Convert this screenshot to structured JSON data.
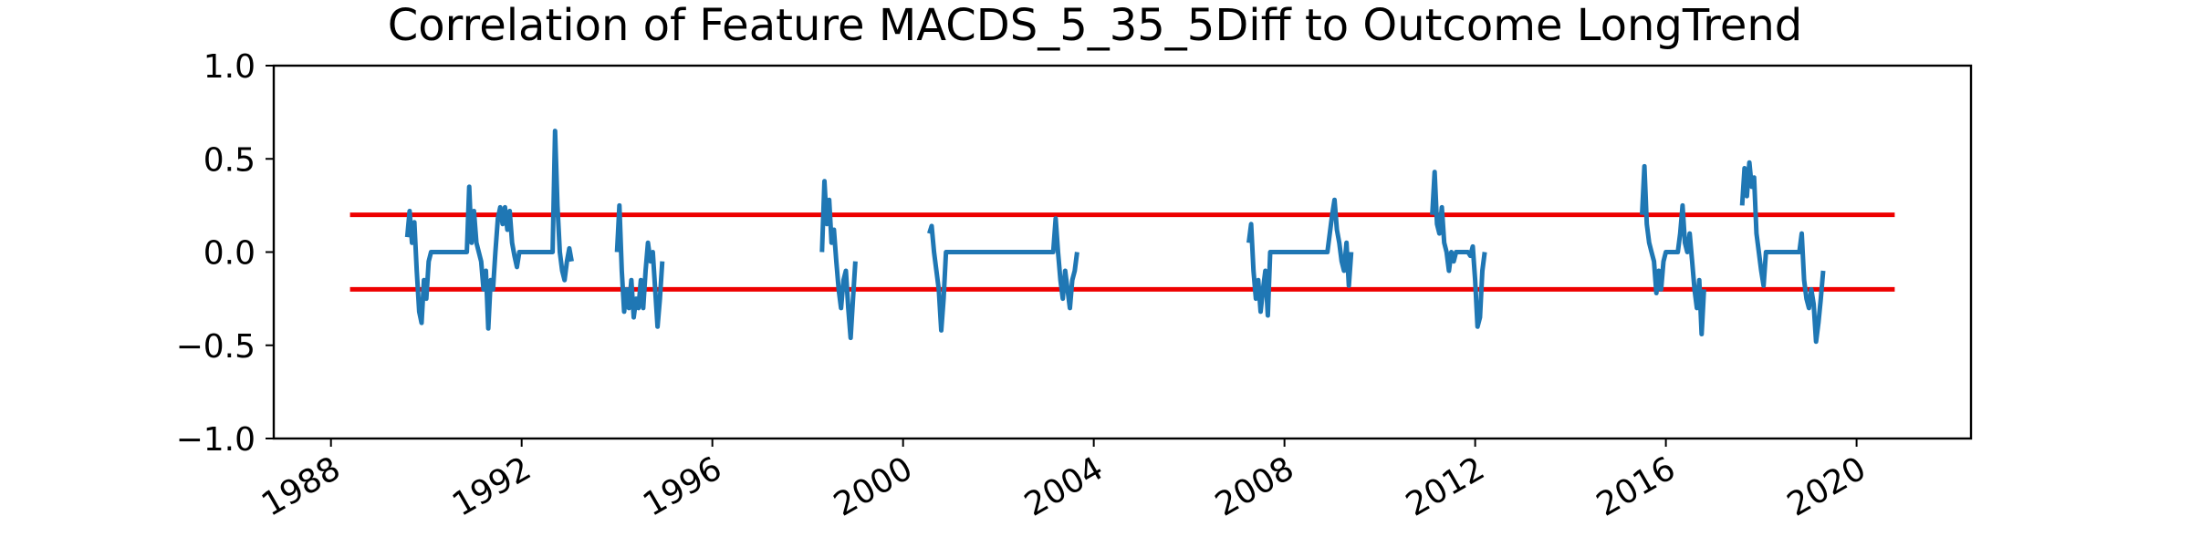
{
  "chart_data": {
    "type": "line",
    "title": "Correlation of Feature MACDS_5_35_5Diff to Outcome LongTrend",
    "xlabel": "",
    "ylabel": "",
    "xlim": [
      1986.8,
      2022.4
    ],
    "ylim": [
      -1.0,
      1.0
    ],
    "x_ticks": [
      "1988",
      "1992",
      "1996",
      "2000",
      "2004",
      "2008",
      "2012",
      "2016",
      "2020"
    ],
    "y_ticks": [
      "1.0",
      "0.5",
      "0.0",
      "−0.5",
      "−1.0"
    ],
    "grid": false,
    "legend": "none",
    "colors": {
      "series": "#1f77b4",
      "threshold": "#ee0000",
      "axes": "#000000"
    },
    "thresholds": [
      {
        "value": 0.2,
        "x_start": 1988.4,
        "x_end": 2020.8
      },
      {
        "value": -0.2,
        "x_start": 1988.4,
        "x_end": 2020.8
      }
    ],
    "series": [
      {
        "segments": [
          [
            [
              1989.6,
              0.08
            ],
            [
              1989.65,
              0.22
            ],
            [
              1989.7,
              0.05
            ],
            [
              1989.75,
              0.16
            ],
            [
              1989.8,
              -0.1
            ],
            [
              1989.85,
              -0.32
            ],
            [
              1989.9,
              -0.38
            ],
            [
              1989.95,
              -0.15
            ],
            [
              1990.0,
              -0.25
            ],
            [
              1990.05,
              -0.05
            ],
            [
              1990.1,
              0.0
            ],
            [
              1990.85,
              0.0
            ],
            [
              1990.9,
              0.35
            ],
            [
              1990.95,
              0.05
            ],
            [
              1991.0,
              0.22
            ],
            [
              1991.05,
              0.05
            ],
            [
              1991.1,
              0.0
            ],
            [
              1991.15,
              -0.05
            ],
            [
              1991.2,
              -0.2
            ],
            [
              1991.25,
              -0.1
            ],
            [
              1991.3,
              -0.41
            ],
            [
              1991.35,
              -0.15
            ],
            [
              1991.4,
              -0.2
            ],
            [
              1991.45,
              0.0
            ],
            [
              1991.5,
              0.18
            ],
            [
              1991.55,
              0.24
            ],
            [
              1991.6,
              0.15
            ],
            [
              1991.65,
              0.24
            ],
            [
              1991.7,
              0.12
            ],
            [
              1991.75,
              0.22
            ],
            [
              1991.8,
              0.05
            ],
            [
              1991.85,
              -0.02
            ],
            [
              1991.9,
              -0.08
            ],
            [
              1991.95,
              0.0
            ],
            [
              1992.65,
              0.0
            ],
            [
              1992.7,
              0.65
            ],
            [
              1992.75,
              0.25
            ],
            [
              1992.8,
              0.0
            ],
            [
              1992.85,
              -0.1
            ],
            [
              1992.9,
              -0.15
            ],
            [
              1992.95,
              -0.05
            ],
            [
              1993.0,
              0.02
            ],
            [
              1993.05,
              -0.05
            ]
          ],
          [
            [
              1994.0,
              0.0
            ],
            [
              1994.05,
              0.25
            ],
            [
              1994.1,
              -0.1
            ],
            [
              1994.15,
              -0.32
            ],
            [
              1994.2,
              -0.2
            ],
            [
              1994.25,
              -0.3
            ],
            [
              1994.3,
              -0.15
            ],
            [
              1994.35,
              -0.35
            ],
            [
              1994.4,
              -0.25
            ],
            [
              1994.45,
              -0.3
            ],
            [
              1994.5,
              -0.15
            ],
            [
              1994.55,
              -0.3
            ],
            [
              1994.6,
              -0.1
            ],
            [
              1994.65,
              0.05
            ],
            [
              1994.7,
              -0.05
            ],
            [
              1994.75,
              0.0
            ],
            [
              1994.8,
              -0.2
            ],
            [
              1994.85,
              -0.4
            ],
            [
              1994.9,
              -0.25
            ],
            [
              1994.95,
              -0.05
            ]
          ],
          [
            [
              1998.3,
              0.0
            ],
            [
              1998.35,
              0.38
            ],
            [
              1998.4,
              0.15
            ],
            [
              1998.45,
              0.28
            ],
            [
              1998.5,
              0.05
            ],
            [
              1998.55,
              0.12
            ],
            [
              1998.6,
              -0.05
            ],
            [
              1998.65,
              -0.2
            ],
            [
              1998.7,
              -0.3
            ],
            [
              1998.75,
              -0.15
            ],
            [
              1998.8,
              -0.1
            ],
            [
              1998.85,
              -0.3
            ],
            [
              1998.9,
              -0.46
            ],
            [
              1998.95,
              -0.25
            ],
            [
              1999.0,
              -0.05
            ]
          ],
          [
            [
              2000.55,
              0.1
            ],
            [
              2000.6,
              0.14
            ],
            [
              2000.65,
              0.0
            ],
            [
              2000.7,
              -0.1
            ],
            [
              2000.75,
              -0.2
            ],
            [
              2000.8,
              -0.42
            ],
            [
              2000.85,
              -0.25
            ],
            [
              2000.9,
              0.0
            ],
            [
              2003.15,
              0.0
            ],
            [
              2003.2,
              0.18
            ],
            [
              2003.25,
              0.0
            ],
            [
              2003.3,
              -0.15
            ],
            [
              2003.35,
              -0.25
            ],
            [
              2003.4,
              -0.1
            ],
            [
              2003.45,
              -0.2
            ],
            [
              2003.5,
              -0.3
            ],
            [
              2003.55,
              -0.15
            ],
            [
              2003.6,
              -0.1
            ],
            [
              2003.65,
              0.0
            ]
          ],
          [
            [
              2007.25,
              0.05
            ],
            [
              2007.3,
              0.15
            ],
            [
              2007.35,
              -0.1
            ],
            [
              2007.4,
              -0.25
            ],
            [
              2007.45,
              -0.15
            ],
            [
              2007.5,
              -0.32
            ],
            [
              2007.55,
              -0.2
            ],
            [
              2007.6,
              -0.1
            ],
            [
              2007.65,
              -0.34
            ],
            [
              2007.7,
              0.0
            ],
            [
              2008.9,
              0.0
            ],
            [
              2008.95,
              0.1
            ],
            [
              2009.0,
              0.2
            ],
            [
              2009.05,
              0.28
            ],
            [
              2009.1,
              0.12
            ],
            [
              2009.15,
              0.05
            ],
            [
              2009.2,
              -0.05
            ],
            [
              2009.25,
              -0.1
            ],
            [
              2009.3,
              0.05
            ],
            [
              2009.35,
              -0.18
            ],
            [
              2009.4,
              0.0
            ]
          ],
          [
            [
              2011.1,
              0.2
            ],
            [
              2011.15,
              0.43
            ],
            [
              2011.2,
              0.15
            ],
            [
              2011.25,
              0.1
            ],
            [
              2011.3,
              0.24
            ],
            [
              2011.35,
              0.05
            ],
            [
              2011.4,
              0.0
            ],
            [
              2011.45,
              -0.1
            ],
            [
              2011.5,
              0.0
            ],
            [
              2011.55,
              -0.05
            ],
            [
              2011.6,
              0.0
            ],
            [
              2011.85,
              0.0
            ],
            [
              2011.9,
              -0.02
            ],
            [
              2011.95,
              0.03
            ],
            [
              2012.0,
              -0.15
            ],
            [
              2012.05,
              -0.4
            ],
            [
              2012.1,
              -0.35
            ],
            [
              2012.15,
              -0.1
            ],
            [
              2012.2,
              0.0
            ]
          ],
          [
            [
              2015.5,
              0.2
            ],
            [
              2015.55,
              0.46
            ],
            [
              2015.6,
              0.15
            ],
            [
              2015.65,
              0.05
            ],
            [
              2015.7,
              0.0
            ],
            [
              2015.75,
              -0.05
            ],
            [
              2015.8,
              -0.22
            ],
            [
              2015.85,
              -0.1
            ],
            [
              2015.9,
              -0.2
            ],
            [
              2015.95,
              -0.05
            ],
            [
              2016.0,
              0.0
            ],
            [
              2016.25,
              0.0
            ],
            [
              2016.3,
              0.1
            ],
            [
              2016.35,
              0.25
            ],
            [
              2016.4,
              0.05
            ],
            [
              2016.45,
              0.0
            ],
            [
              2016.5,
              0.1
            ],
            [
              2016.55,
              -0.05
            ],
            [
              2016.6,
              -0.2
            ],
            [
              2016.65,
              -0.3
            ],
            [
              2016.7,
              -0.15
            ],
            [
              2016.75,
              -0.44
            ],
            [
              2016.8,
              -0.2
            ]
          ],
          [
            [
              2017.6,
              0.25
            ],
            [
              2017.65,
              0.45
            ],
            [
              2017.7,
              0.3
            ],
            [
              2017.75,
              0.48
            ],
            [
              2017.8,
              0.35
            ],
            [
              2017.85,
              0.4
            ],
            [
              2017.9,
              0.1
            ],
            [
              2017.95,
              0.0
            ],
            [
              2018.0,
              -0.1
            ],
            [
              2018.05,
              -0.18
            ],
            [
              2018.1,
              0.0
            ],
            [
              2018.8,
              0.0
            ],
            [
              2018.85,
              0.1
            ],
            [
              2018.9,
              -0.15
            ],
            [
              2018.95,
              -0.25
            ],
            [
              2019.0,
              -0.3
            ],
            [
              2019.05,
              -0.2
            ],
            [
              2019.1,
              -0.28
            ],
            [
              2019.15,
              -0.48
            ],
            [
              2019.2,
              -0.38
            ],
            [
              2019.25,
              -0.25
            ],
            [
              2019.3,
              -0.1
            ]
          ]
        ]
      }
    ]
  }
}
